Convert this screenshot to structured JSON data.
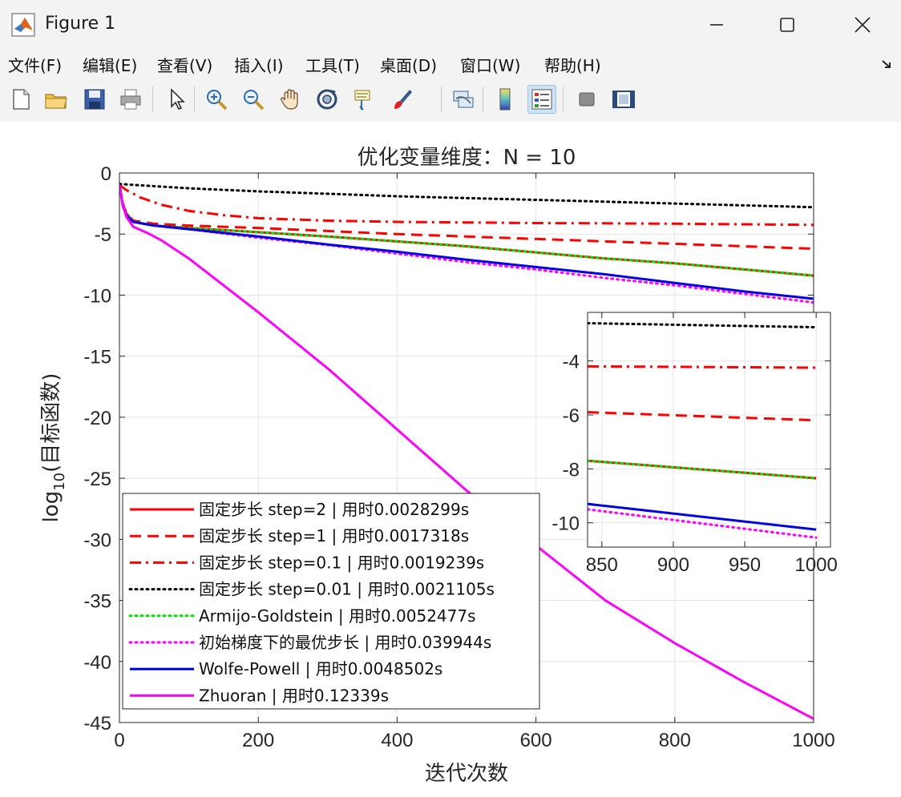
{
  "window": {
    "title": "Figure 1"
  },
  "menu": [
    "文件(F)",
    "编辑(E)",
    "查看(V)",
    "插入(I)",
    "工具(T)",
    "桌面(D)",
    "窗口(W)",
    "帮助(H)"
  ],
  "toolbar": [
    "new-figure-icon",
    "open-folder-icon",
    "save-icon",
    "print-icon",
    "pointer-icon",
    "zoom-in-icon",
    "zoom-out-icon",
    "pan-hand-icon",
    "rotate-3d-icon",
    "data-cursor-icon",
    "brush-icon",
    "link-plot-icon",
    "colorbar-icon",
    "legend-icon",
    "hide-plot-tools-icon",
    "show-plot-tools-icon"
  ],
  "colors": {
    "red": "#ff0000",
    "black": "#000000",
    "green": "#00e000",
    "magenta": "#ff00ff",
    "blue": "#0000e0"
  },
  "chart_data": [
    {
      "type": "line",
      "title": "优化变量维度：N = 10",
      "xlabel": "迭代次数",
      "ylabel_base": "log",
      "ylabel_sub": "10",
      "ylabel_rest": "(目标函数)",
      "xlim": [
        0,
        1000
      ],
      "ylim": [
        -45,
        0
      ],
      "xticks": [
        0,
        200,
        400,
        600,
        800,
        1000
      ],
      "yticks": [
        0,
        -5,
        -10,
        -15,
        -20,
        -25,
        -30,
        -35,
        -40,
        -45
      ],
      "grid": true,
      "legend_position": "bottom-left",
      "series": [
        {
          "name": "固定步长 step=2 | 用时0.0028299s",
          "style": "solid",
          "color": "#ff0000",
          "x": [
            0,
            5,
            10,
            20,
            50,
            100,
            200,
            300,
            400,
            500,
            600,
            700,
            800,
            900,
            1000
          ],
          "y": [
            -1.0,
            -2.6,
            -3.3,
            -4.0,
            -4.3,
            -4.5,
            -4.85,
            -5.2,
            -5.6,
            -6.0,
            -6.5,
            -7.0,
            -7.4,
            -7.9,
            -8.4
          ]
        },
        {
          "name": "固定步长 step=1 | 用时0.0017318s",
          "style": "dashed",
          "color": "#ff0000",
          "x": [
            0,
            5,
            10,
            20,
            50,
            100,
            200,
            300,
            400,
            500,
            600,
            700,
            800,
            900,
            1000
          ],
          "y": [
            -1.0,
            -2.5,
            -3.3,
            -3.9,
            -4.15,
            -4.3,
            -4.5,
            -4.75,
            -5.0,
            -5.2,
            -5.4,
            -5.6,
            -5.8,
            -6.0,
            -6.2
          ]
        },
        {
          "name": "固定步长 step=0.1 | 用时0.0019239s",
          "style": "dashdot",
          "color": "#ff0000",
          "x": [
            0,
            10,
            30,
            60,
            100,
            150,
            200,
            300,
            400,
            500,
            600,
            700,
            800,
            900,
            1000
          ],
          "y": [
            -1.0,
            -1.4,
            -2.0,
            -2.6,
            -3.1,
            -3.45,
            -3.7,
            -3.9,
            -4.0,
            -4.05,
            -4.1,
            -4.12,
            -4.15,
            -4.2,
            -4.25
          ]
        },
        {
          "name": "固定步长 step=0.01 | 用时0.0021105s",
          "style": "dotted",
          "color": "#000000",
          "x": [
            0,
            100,
            200,
            300,
            400,
            500,
            600,
            700,
            800,
            900,
            1000
          ],
          "y": [
            -0.9,
            -1.25,
            -1.5,
            -1.7,
            -1.9,
            -2.05,
            -2.2,
            -2.35,
            -2.5,
            -2.65,
            -2.8
          ]
        },
        {
          "name": "Armijo-Goldstein | 用时0.0052477s",
          "style": "dotted",
          "color": "#00e000",
          "x": [
            0,
            5,
            10,
            20,
            50,
            100,
            200,
            300,
            400,
            500,
            600,
            700,
            800,
            900,
            1000
          ],
          "y": [
            -1.0,
            -2.6,
            -3.3,
            -4.0,
            -4.3,
            -4.5,
            -4.85,
            -5.2,
            -5.6,
            -6.0,
            -6.5,
            -7.0,
            -7.4,
            -7.9,
            -8.4
          ]
        },
        {
          "name": "初始梯度下的最优步长 | 用时0.039944s",
          "style": "dotted",
          "color": "#ff00ff",
          "x": [
            0,
            5,
            10,
            20,
            50,
            100,
            200,
            300,
            400,
            500,
            600,
            700,
            800,
            900,
            1000
          ],
          "y": [
            -1.0,
            -2.6,
            -3.4,
            -4.0,
            -4.3,
            -4.6,
            -5.3,
            -5.9,
            -6.6,
            -7.3,
            -7.9,
            -8.6,
            -9.2,
            -9.9,
            -10.6
          ]
        },
        {
          "name": "Wolfe-Powell | 用时0.0048502s",
          "style": "solid",
          "color": "#0000e0",
          "x": [
            0,
            5,
            10,
            20,
            50,
            100,
            200,
            300,
            400,
            500,
            600,
            700,
            800,
            900,
            1000
          ],
          "y": [
            -1.0,
            -2.7,
            -3.5,
            -4.0,
            -4.3,
            -4.6,
            -5.2,
            -5.85,
            -6.45,
            -7.1,
            -7.7,
            -8.3,
            -9.0,
            -9.7,
            -10.3
          ]
        },
        {
          "name": "Zhuoran | 用时0.12339s",
          "style": "solid",
          "color": "#ff00ff",
          "x": [
            0,
            5,
            10,
            20,
            40,
            60,
            100,
            200,
            300,
            400,
            500,
            600,
            700,
            800,
            900,
            1000
          ],
          "y": [
            -1.0,
            -2.6,
            -3.6,
            -4.4,
            -4.9,
            -5.5,
            -7.0,
            -11.4,
            -16.0,
            -21.0,
            -26.0,
            -30.5,
            -35.0,
            -38.5,
            -41.7,
            -44.7
          ]
        }
      ]
    },
    {
      "type": "line",
      "title": "",
      "xlim": [
        840,
        1010
      ],
      "ylim": [
        -10.9,
        -2.2
      ],
      "xticks": [
        850,
        900,
        950,
        1000
      ],
      "yticks": [
        -4,
        -6,
        -8,
        -10
      ],
      "grid": true,
      "series": [
        {
          "ref": 0,
          "style": "solid",
          "color": "#ff0000",
          "x": [
            840,
            1000
          ],
          "y": [
            -7.7,
            -8.35
          ]
        },
        {
          "ref": 1,
          "style": "dashed",
          "color": "#ff0000",
          "x": [
            840,
            1000
          ],
          "y": [
            -5.9,
            -6.2
          ]
        },
        {
          "ref": 2,
          "style": "dashdot",
          "color": "#ff0000",
          "x": [
            840,
            1000
          ],
          "y": [
            -4.2,
            -4.25
          ]
        },
        {
          "ref": 3,
          "style": "dotted",
          "color": "#000000",
          "x": [
            840,
            1000
          ],
          "y": [
            -2.6,
            -2.75
          ]
        },
        {
          "ref": 4,
          "style": "dotted",
          "color": "#00e000",
          "x": [
            840,
            1000
          ],
          "y": [
            -7.7,
            -8.35
          ]
        },
        {
          "ref": 5,
          "style": "dotted",
          "color": "#ff00ff",
          "x": [
            840,
            1000
          ],
          "y": [
            -9.5,
            -10.55
          ]
        },
        {
          "ref": 6,
          "style": "solid",
          "color": "#0000e0",
          "x": [
            840,
            1000
          ],
          "y": [
            -9.3,
            -10.25
          ]
        }
      ]
    }
  ]
}
